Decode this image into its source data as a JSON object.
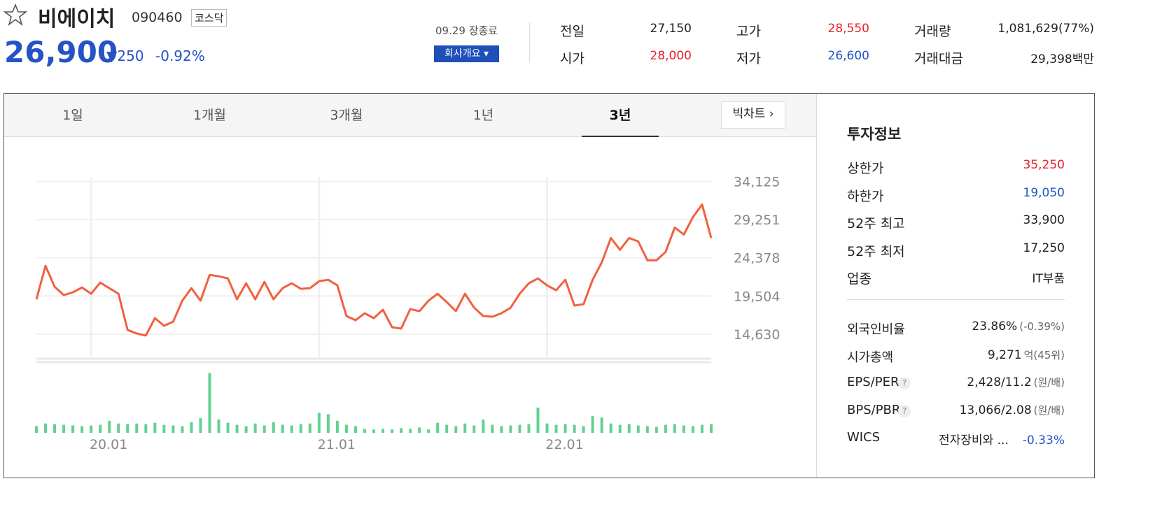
{
  "header": {
    "name": "비에이치",
    "code": "090460",
    "market": "코스닥",
    "price": "26,900",
    "change": "250",
    "change_pct": "-0.92%",
    "date": "09.29 장종료",
    "company_button": "회사개요"
  },
  "quote": [
    {
      "label": "전일",
      "value": "27,150"
    },
    {
      "label": "고가",
      "value": "28,550"
    },
    {
      "label": "거래량",
      "value": "1,081,629(77%)"
    },
    {
      "label": "시가",
      "value": "28,000"
    },
    {
      "label": "저가",
      "value": "26,600"
    },
    {
      "label": "거래대금",
      "value": "29,398백만"
    }
  ],
  "tabs": [
    "1일",
    "1개월",
    "3개월",
    "1년",
    "3년"
  ],
  "big_chart": "빅차트",
  "chart_data": {
    "type": "line",
    "categories": [
      null,
      null,
      null,
      null,
      null,
      null,
      "20.01",
      null,
      null,
      null,
      null,
      null,
      null,
      null,
      null,
      null,
      null,
      null,
      null,
      null,
      null,
      null,
      null,
      null,
      null,
      null,
      null,
      null,
      null,
      null,
      null,
      "21.01",
      null,
      null,
      null,
      null,
      null,
      null,
      null,
      null,
      null,
      null,
      null,
      null,
      null,
      null,
      null,
      null,
      null,
      null,
      null,
      null,
      null,
      null,
      null,
      null,
      "22.01",
      null,
      null,
      null,
      null,
      null,
      null,
      null,
      null,
      null,
      null,
      null,
      null,
      null,
      null,
      null,
      null,
      null,
      null
    ],
    "values": [
      19077,
      23346,
      20678,
      19610,
      19966,
      20589,
      19788,
      21211,
      20500,
      19788,
      15164,
      14719,
      14452,
      16676,
      15697,
      16231,
      18899,
      20500,
      18899,
      22190,
      22012,
      21745,
      19077,
      21123,
      19077,
      21300,
      19077,
      20500,
      21123,
      20411,
      20500,
      21389,
      21567,
      20856,
      16942,
      16409,
      17298,
      16676,
      17743,
      15519,
      15341,
      17832,
      17565,
      18899,
      19788,
      18721,
      17565,
      19788,
      18010,
      16942,
      16854,
      17298,
      18010,
      19788,
      21123,
      21745,
      20856,
      20233,
      21567,
      18276,
      18454,
      21567,
      23791,
      26904,
      25392,
      26904,
      26459,
      24058,
      24058,
      25125,
      28238,
      27349,
      29572,
      31173,
      26900
    ],
    "color": "#f2603f",
    "ylim": [
      11500,
      34700
    ],
    "yticks": [
      {
        "value": 14630,
        "label": "14,630"
      },
      {
        "value": 19504,
        "label": "19,504"
      },
      {
        "value": 24378,
        "label": "24,378"
      },
      {
        "value": 29251,
        "label": "29,251"
      },
      {
        "value": 34125,
        "label": "34,125"
      }
    ],
    "grid": true,
    "volume": [
      10,
      14,
      13,
      12,
      11,
      10,
      11,
      12,
      18,
      14,
      13,
      14,
      13,
      15,
      12,
      11,
      10,
      16,
      22,
      90,
      20,
      15,
      12,
      10,
      14,
      11,
      16,
      12,
      11,
      13,
      14,
      30,
      28,
      18,
      12,
      10,
      6,
      5,
      6,
      5,
      7,
      6,
      8,
      5,
      15,
      12,
      10,
      14,
      11,
      20,
      12,
      10,
      11,
      12,
      13,
      38,
      14,
      12,
      13,
      12,
      10,
      25,
      23,
      14,
      12,
      13,
      11,
      10,
      9,
      12,
      13,
      11,
      10,
      12,
      13
    ],
    "volume_lim": [
      0,
      100
    ],
    "volume_color": "#63d08f"
  },
  "invest": {
    "title": "투자정보",
    "rows": [
      {
        "label": "상한가",
        "value": "35,250"
      },
      {
        "label": "하한가",
        "value": "19,050"
      },
      {
        "label": "52주 최고",
        "value": "33,900"
      },
      {
        "label": "52주 최저",
        "value": "17,250"
      },
      {
        "label": "업종",
        "value": "IT부품"
      }
    ],
    "rows2": [
      {
        "label": "외국인비율",
        "value": "23.86%",
        "sub": "(-0.39%)"
      },
      {
        "label": "시가총액",
        "value": "9,271",
        "sub": "억(45위)"
      },
      {
        "label": "EPS/PER",
        "value": "2,428/11.2",
        "sub": "(원/배)"
      },
      {
        "label": "BPS/PBR",
        "value": "13,066/2.08",
        "sub": "(원/배)"
      },
      {
        "label": "WICS",
        "value": "전자장비와 ...",
        "sub": "-0.33%"
      }
    ]
  }
}
